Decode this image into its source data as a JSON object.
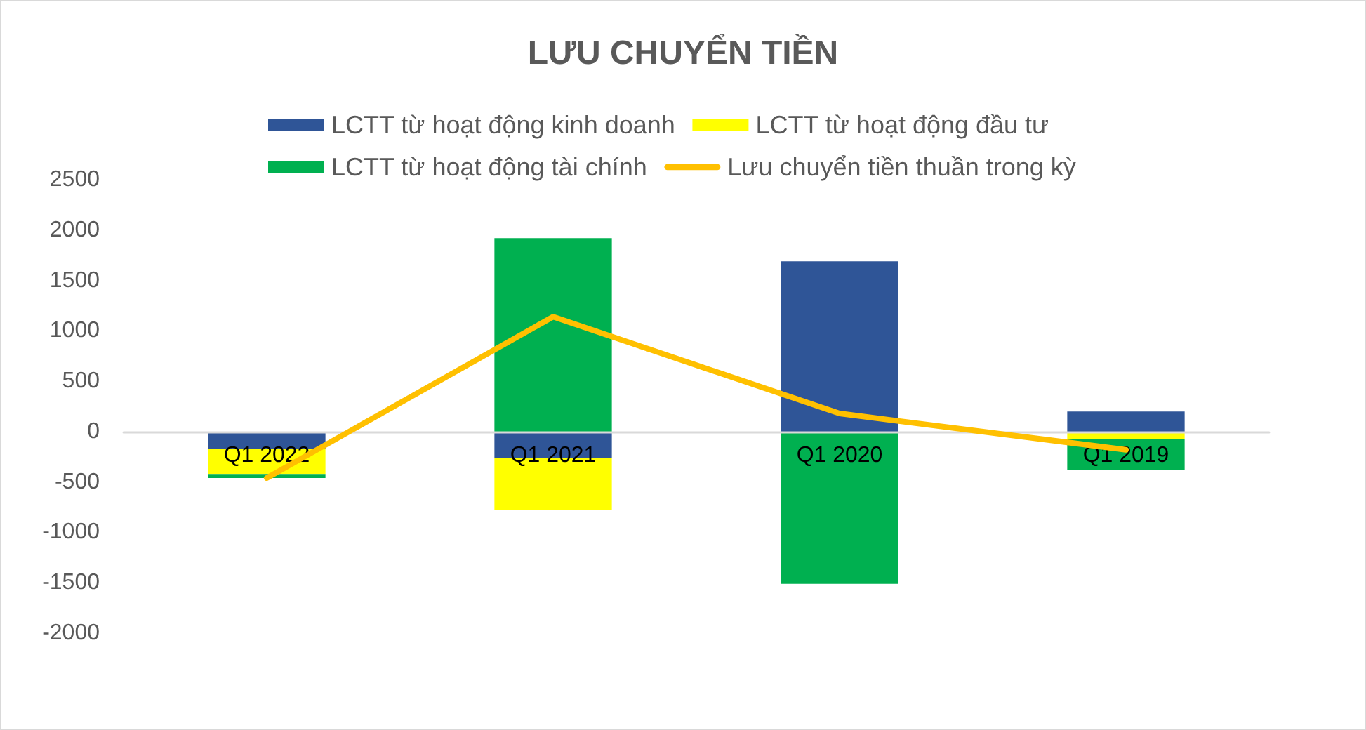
{
  "chart_data": {
    "type": "bar",
    "title": "LƯU CHUYỂN TIỀN",
    "categories": [
      "Q1 2022",
      "Q1 2021",
      "Q1 2020",
      "Q1 2019"
    ],
    "stacked": true,
    "series": [
      {
        "name": "LCTT từ hoạt động kinh doanh",
        "color": "#2f5597",
        "values": [
          -170,
          -260,
          1690,
          200
        ]
      },
      {
        "name": "LCTT từ hoạt động đầu tư",
        "color": "#ffff00",
        "values": [
          -250,
          -520,
          null,
          -70
        ]
      },
      {
        "name": "LCTT từ hoạt động tài chính",
        "color": "#00b050",
        "values": [
          -40,
          1920,
          -1510,
          -310
        ]
      },
      {
        "name": "Lưu chuyển tiền thuần trong kỳ",
        "type": "line",
        "color": "#ffc000",
        "values": [
          -460,
          1140,
          180,
          -180
        ]
      }
    ],
    "ylim": [
      -2000,
      2500
    ],
    "yticks": [
      -2000,
      -1500,
      -1000,
      -500,
      0,
      500,
      1000,
      1500,
      2000,
      2500
    ],
    "grid": false,
    "legend": "top",
    "marker": "none"
  }
}
